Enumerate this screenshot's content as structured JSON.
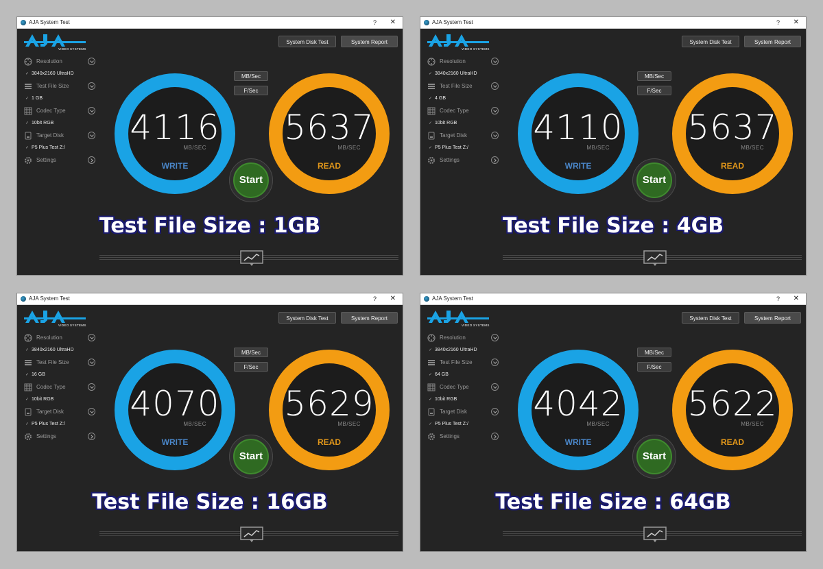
{
  "common": {
    "window_title": "AJA System Test",
    "help_glyph": "?",
    "close_glyph": "✕",
    "logo_sub": "VIDEO SYSTEMS",
    "system_disk_test_label": "System Disk Test",
    "system_report_label": "System Report",
    "menu": {
      "resolution_label": "Resolution",
      "resolution_value": "3840x2160 UltraHD",
      "file_size_label": "Test File Size",
      "codec_label": "Codec Type",
      "codec_value": "10bit RGB",
      "target_label": "Target Disk",
      "target_value": "P5 Plus Test Z:/",
      "settings_label": "Settings"
    },
    "check_glyph": "✓",
    "mbsec_label": "MB/Sec",
    "fsec_label": "F/Sec",
    "unit_label": "MB/SEC",
    "write_label": "WRITE",
    "read_label": "READ",
    "start_label": "Start",
    "colors": {
      "write": "#1aa3e5",
      "read": "#f39c12",
      "start": "#2f6a22"
    }
  },
  "windows": [
    {
      "file_size_value": "1 GB",
      "write_value": "4116",
      "read_value": "5637",
      "overlay": "Test File Size : 1GB"
    },
    {
      "file_size_value": "4 GB",
      "write_value": "4110",
      "read_value": "5637",
      "overlay": "Test File Size : 4GB"
    },
    {
      "file_size_value": "16 GB",
      "write_value": "4070",
      "read_value": "5629",
      "overlay": "Test File Size : 16GB"
    },
    {
      "file_size_value": "64 GB",
      "write_value": "4042",
      "read_value": "5622",
      "overlay": "Test File Size : 64GB"
    }
  ]
}
